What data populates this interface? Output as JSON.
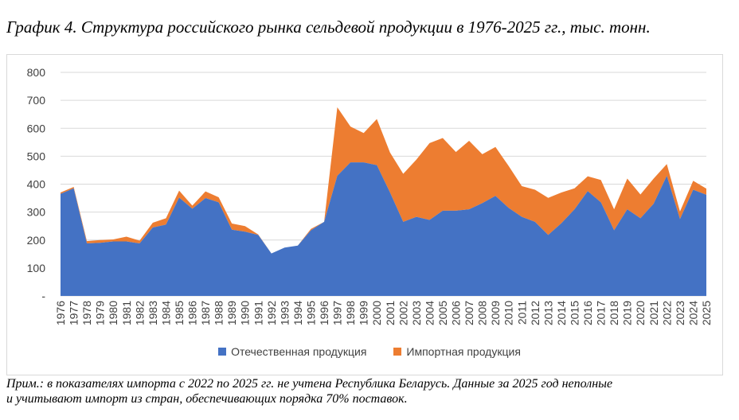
{
  "caption": "График 4. Структура российского рынка сельдевой продукции в 1976-2025 гг., тыс. тонн.",
  "note": {
    "line1": "Прим.: в показателях импорта с 2022 по 2025 гг. не учтена Республика Беларусь. Данные за 2025 год неполные",
    "line2": "и учитывают импорт из стран, обеспечивающих порядка 70% поставок."
  },
  "legend": {
    "domestic": "Отечественная продукция",
    "import": "Импортная продукция"
  },
  "colors": {
    "domestic": "#4472c4",
    "import": "#ed7d31",
    "grid": "#d9d9d9",
    "axis_text": "#404040"
  },
  "chart_data": {
    "type": "area",
    "stacked": true,
    "categories": [
      "1976",
      "1977",
      "1978",
      "1979",
      "1980",
      "1981",
      "1982",
      "1983",
      "1984",
      "1985",
      "1986",
      "1987",
      "1988",
      "1989",
      "1990",
      "1991",
      "1992",
      "1993",
      "1994",
      "1995",
      "1996",
      "1997",
      "1998",
      "1999",
      "2000",
      "2001",
      "2002",
      "2003",
      "2004",
      "2005",
      "2006",
      "2007",
      "2008",
      "2009",
      "2010",
      "2011",
      "2012",
      "2013",
      "2014",
      "2015",
      "2016",
      "2017",
      "2018",
      "2019",
      "2020",
      "2021",
      "2022",
      "2023",
      "2024",
      "2025"
    ],
    "series": [
      {
        "name": "Отечественная продукция",
        "values": [
          365,
          385,
          188,
          190,
          195,
          195,
          188,
          245,
          255,
          352,
          312,
          350,
          335,
          237,
          230,
          218,
          152,
          173,
          180,
          235,
          265,
          430,
          478,
          478,
          468,
          370,
          265,
          283,
          272,
          305,
          305,
          310,
          332,
          358,
          315,
          283,
          265,
          218,
          260,
          310,
          375,
          335,
          235,
          310,
          278,
          330,
          430,
          275,
          380,
          362
        ]
      },
      {
        "name": "Импортная продукция",
        "values": [
          5,
          5,
          8,
          10,
          7,
          17,
          10,
          17,
          23,
          25,
          11,
          24,
          18,
          22,
          20,
          2,
          0,
          0,
          0,
          5,
          0,
          245,
          128,
          105,
          165,
          143,
          172,
          205,
          275,
          260,
          210,
          245,
          175,
          175,
          150,
          110,
          115,
          133,
          110,
          75,
          53,
          80,
          75,
          110,
          85,
          90,
          42,
          27,
          32,
          22
        ]
      }
    ],
    "ylim": [
      0,
      800
    ],
    "y_ticks": [
      "-",
      "100",
      "200",
      "300",
      "400",
      "500",
      "600",
      "700",
      "800"
    ],
    "grid": true,
    "legend_position": "bottom"
  }
}
